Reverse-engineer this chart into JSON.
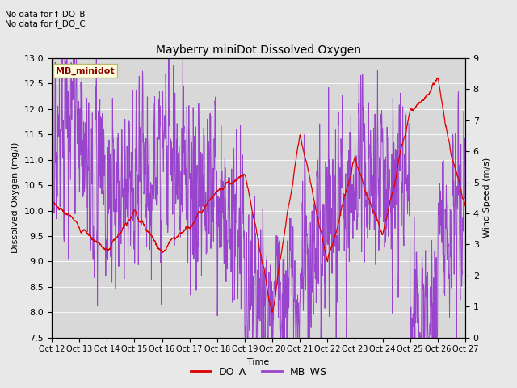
{
  "title": "Mayberry miniDot Dissolved Oxygen",
  "xlabel": "Time",
  "ylabel_left": "Dissolved Oxygen (mg/l)",
  "ylabel_right": "Wind Speed (m/s)",
  "ylim_left": [
    7.5,
    13.0
  ],
  "ylim_right": [
    0.0,
    9.0
  ],
  "legend_label_box": "MB_minidot",
  "annotations": [
    "No data for f_DO_B",
    "No data for f_DO_C"
  ],
  "line_DO_color": "#dd0000",
  "line_WS_color": "#9944cc",
  "legend_DO_label": "DO_A",
  "legend_WS_label": "MB_WS",
  "background_color": "#e8e8e8",
  "plot_bg_color": "#d8d8d8",
  "xtick_labels": [
    "Oct 12",
    "Oct 13",
    "Oct 14",
    "Oct 15",
    "Oct 16",
    "Oct 17",
    "Oct 18",
    "Oct 19",
    "Oct 20",
    "Oct 21",
    "Oct 22",
    "Oct 23",
    "Oct 24",
    "Oct 25",
    "Oct 26",
    "Oct 27"
  ],
  "n_points": 2000
}
